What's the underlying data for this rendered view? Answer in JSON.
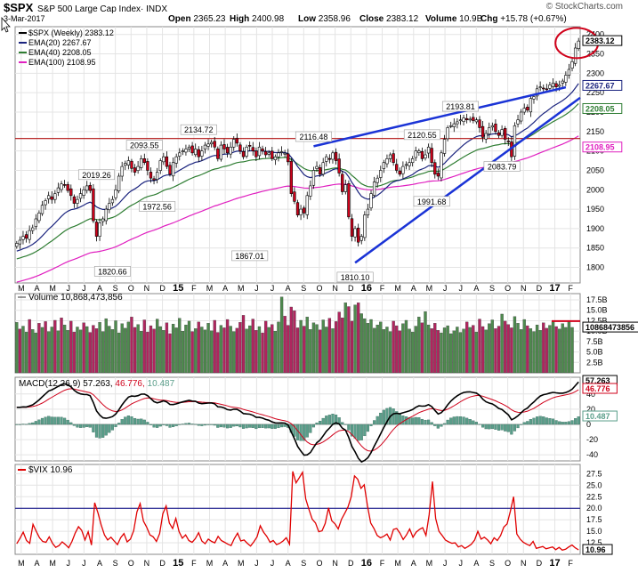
{
  "header": {
    "symbol": "$SPX",
    "name": "S&P 500 Large Cap Index",
    "exchange": "INDX",
    "date": "3-Mar-2017",
    "open_label": "Open",
    "open": "2365.23",
    "high_label": "High",
    "high": "2400.98",
    "low_label": "Low",
    "low": "2358.96",
    "close_label": "Close",
    "close": "2383.12",
    "volume_label": "Volume",
    "volume": "10.9B",
    "chg_label": "Chg",
    "chg": "+15.78 (+0.67%)",
    "watermark": "© StockCharts.com"
  },
  "colors": {
    "up": "#ffffff",
    "down": "#d0021b",
    "ema20": "#1a237e",
    "ema40": "#2e7d32",
    "ema100": "#e020c0",
    "trend": "#1a33d6",
    "hline": "#b01010",
    "vol_up": "#4e8a4e",
    "vol_down": "#b0255e",
    "macd_hist": "#5a9e8a",
    "vix": "#e00000",
    "axis": "#555555",
    "grid": "#e4e4e4"
  },
  "x_axis": {
    "month_labels": [
      "M",
      "A",
      "M",
      "J",
      "J",
      "A",
      "S",
      "O",
      "N",
      "D",
      "15",
      "F",
      "M",
      "A",
      "M",
      "J",
      "J",
      "A",
      "S",
      "O",
      "N",
      "D",
      "16",
      "F",
      "M",
      "A",
      "M",
      "J",
      "J",
      "A",
      "S",
      "O",
      "N",
      "D",
      "17",
      "F"
    ],
    "bold_labels": [
      "15",
      "16",
      "17"
    ]
  },
  "chart_data": [
    {
      "type": "candlestick",
      "title": "$SPX (Weekly) 2383.12",
      "period": "Weekly",
      "legend_placement": "top-left",
      "legend": [
        {
          "label": "$SPX (Weekly) 2383.12",
          "color": "#000000"
        },
        {
          "label": "EMA(20) 2267.67",
          "color": "#1a237e"
        },
        {
          "label": "EMA(40) 2208.05",
          "color": "#2e7d32"
        },
        {
          "label": "EMA(100) 2108.95",
          "color": "#e020c0"
        }
      ],
      "y_ticks": [
        1800,
        1850,
        1900,
        1950,
        2000,
        2050,
        2100,
        2150,
        2200,
        2250,
        2300,
        2350,
        2400
      ],
      "y_tick_labels": [
        "1800",
        "1850",
        "1900",
        "1950",
        "2000",
        "2050",
        "2100",
        "2150",
        "2200",
        "2250",
        "2300",
        "2350",
        "2400"
      ],
      "ylim": [
        1760,
        2420
      ],
      "last_value_tags": [
        {
          "label": "2383.12",
          "value": 2383.12,
          "color": "#000000"
        },
        {
          "label": "2267.67",
          "value": 2267.67,
          "color": "#1a237e"
        },
        {
          "label": "2208.05",
          "value": 2208.05,
          "color": "#2e7d32"
        },
        {
          "label": "2108.95",
          "value": 2108.95,
          "color": "#e020c0"
        }
      ],
      "close": [
        1862,
        1870,
        1880,
        1875,
        1895,
        1902,
        1925,
        1940,
        1960,
        1972,
        1985,
        1975,
        1990,
        2005,
        2015,
        2012,
        1998,
        1985,
        1965,
        1975,
        1990,
        2000,
        2010,
        1998,
        1920,
        1880,
        1915,
        1925,
        1950,
        1965,
        1975,
        2000,
        2035,
        2060,
        2068,
        2075,
        2055,
        2045,
        2060,
        2080,
        2070,
        2050,
        2030,
        2025,
        2045,
        2075,
        2085,
        2060,
        2040,
        2070,
        2085,
        2095,
        2100,
        2105,
        2110,
        2095,
        2105,
        2085,
        2100,
        2115,
        2118,
        2122,
        2110,
        2080,
        2115,
        2105,
        2095,
        2110,
        2130,
        2120,
        2100,
        2085,
        2110,
        2112,
        2100,
        2085,
        2110,
        2100,
        2090,
        2095,
        2080,
        2085,
        2095,
        2098,
        2094,
        2072,
        1990,
        1970,
        1935,
        1950,
        1940,
        1985,
        2010,
        2050,
        2060,
        2040,
        2070,
        2085,
        2080,
        2095,
        2075,
        2043,
        1995,
        2013,
        1930,
        1880,
        1900,
        1865,
        1880,
        1935,
        1950,
        1990,
        2020,
        2030,
        2050,
        2070,
        2080,
        2090,
        2070,
        2050,
        2040,
        2060,
        2065,
        2070,
        2080,
        2100,
        2100,
        2080,
        2090,
        2110,
        2070,
        2040,
        2035,
        2095,
        2130,
        2160,
        2165,
        2170,
        2175,
        2180,
        2185,
        2180,
        2182,
        2178,
        2180,
        2160,
        2135,
        2145,
        2160,
        2165,
        2150,
        2140,
        2155,
        2130,
        2125,
        2085,
        2165,
        2180,
        2200,
        2210,
        2205,
        2235,
        2240,
        2260,
        2265,
        2260,
        2258,
        2270,
        2275,
        2265,
        2270,
        2280,
        2295,
        2310,
        2330,
        2365,
        2383
      ],
      "lows": [
        1820.66,
        1867.01,
        1810.1,
        1991.68,
        2083.79
      ],
      "highs": [
        2019.26,
        2093.55,
        2134.72,
        2116.48,
        2120.55,
        2193.81
      ],
      "extra_labels": [
        {
          "label": "1972.56",
          "value": 1972.56
        }
      ],
      "annotations": [
        "1820.66",
        "2019.26",
        "2093.55",
        "1972.56",
        "2134.72",
        "1867.01",
        "2116.48",
        "1810.10",
        "1991.68",
        "2120.55",
        "2193.81",
        "2083.79"
      ],
      "horizontal_line": 2132,
      "series": [
        {
          "name": "EMA(20)",
          "color": "#1a237e"
        },
        {
          "name": "EMA(40)",
          "color": "#2e7d32"
        },
        {
          "name": "EMA(100)",
          "color": "#e020c0"
        }
      ]
    },
    {
      "type": "bar",
      "title": "Volume 10,868,473,856",
      "y_tick_labels": [
        "2.5B",
        "5.0B",
        "7.5B",
        "10.0B",
        "12.5B",
        "15.0B",
        "17.5B"
      ],
      "y_ticks": [
        2.5,
        5.0,
        7.5,
        10.0,
        12.5,
        15.0,
        17.5
      ],
      "ylim": [
        0,
        19
      ],
      "last_value_tag": {
        "label": "10868473856",
        "value": 10.87
      },
      "reference_line": 12.4,
      "values": [
        12.1,
        10.5,
        11.2,
        9.8,
        12.8,
        10.4,
        9.6,
        11.9,
        10.9,
        12.3,
        9.9,
        11.0,
        12.6,
        10.1,
        13.2,
        11.5,
        10.2,
        12.4,
        9.8,
        11.0,
        10.3,
        12.0,
        11.1,
        9.7,
        11.4,
        10.6,
        12.1,
        9.9,
        13.0,
        11.2,
        10.4,
        12.5,
        9.6,
        11.8,
        10.7,
        12.2,
        13.4,
        10.9,
        11.6,
        10.0,
        12.7,
        9.8,
        11.3,
        10.5,
        12.9,
        11.1,
        10.2,
        12.0,
        9.4,
        11.7,
        10.8,
        13.1,
        10.0,
        11.5,
        12.4,
        9.9,
        10.6,
        12.2,
        11.0,
        10.3,
        11.9,
        10.1,
        12.6,
        9.7,
        11.4,
        10.8,
        12.8,
        11.2,
        9.9,
        10.7,
        12.1,
        13.8,
        10.5,
        11.3,
        12.9,
        10.2,
        11.1,
        9.6,
        12.4,
        10.9,
        11.6,
        10.0,
        12.2,
        18.2,
        13.6,
        11.4,
        15.8,
        14.9,
        10.8,
        12.6,
        11.2,
        13.4,
        10.4,
        12.0,
        11.6,
        10.3,
        12.7,
        11.0,
        13.1,
        10.6,
        12.3,
        14.6,
        13.2,
        16.8,
        15.9,
        12.4,
        16.3,
        16.8,
        14.2,
        13.0,
        11.9,
        12.8,
        10.7,
        11.5,
        12.2,
        10.4,
        11.0,
        9.9,
        12.4,
        11.3,
        10.1,
        11.8,
        12.6,
        10.5,
        9.8,
        11.2,
        13.4,
        12.0,
        14.7,
        11.5,
        10.6,
        11.9,
        10.2,
        9.6,
        10.8,
        11.3,
        9.4,
        10.1,
        11.0,
        9.7,
        10.5,
        12.2,
        10.9,
        11.4,
        9.8,
        12.9,
        11.1,
        10.3,
        11.8,
        12.7,
        10.6,
        11.2,
        14.1,
        12.4,
        11.6,
        10.8,
        13.5,
        11.9,
        10.4,
        12.8,
        11.3,
        10.6,
        9.9,
        11.5,
        10.2,
        12.0,
        10.7,
        11.4,
        12.3,
        11.1,
        10.5,
        11.8,
        10.9,
        12.2,
        10.9
      ],
      "up_flags": [
        1,
        0,
        1,
        1,
        0,
        1,
        1,
        0,
        1,
        0,
        1,
        1,
        0,
        1,
        0,
        1,
        1,
        0,
        0,
        1,
        1,
        0,
        1,
        0,
        0,
        0,
        1,
        1,
        1,
        1,
        1,
        1,
        1,
        1,
        1,
        1,
        0,
        0,
        1,
        1,
        0,
        0,
        0,
        0,
        1,
        1,
        1,
        0,
        0,
        1,
        1,
        1,
        1,
        1,
        1,
        0,
        1,
        0,
        1,
        1,
        1,
        1,
        0,
        0,
        1,
        0,
        0,
        1,
        1,
        0,
        0,
        0,
        1,
        1,
        0,
        0,
        1,
        0,
        0,
        1,
        0,
        1,
        1,
        1,
        0,
        0,
        0,
        0,
        0,
        1,
        0,
        1,
        1,
        1,
        1,
        0,
        1,
        1,
        0,
        1,
        0,
        0,
        0,
        1,
        0,
        0,
        1,
        0,
        1,
        1,
        1,
        1,
        1,
        1,
        1,
        1,
        1,
        1,
        0,
        0,
        0,
        1,
        1,
        1,
        1,
        1,
        1,
        0,
        1,
        1,
        0,
        0,
        0,
        1,
        1,
        1,
        1,
        1,
        1,
        1,
        1,
        0,
        1,
        0,
        1,
        0,
        0,
        1,
        1,
        1,
        0,
        0,
        1,
        0,
        0,
        0,
        1,
        1,
        1,
        1,
        0,
        1,
        1,
        1,
        1,
        0,
        0,
        1,
        1,
        0,
        1,
        1,
        1,
        1,
        1,
        1,
        1
      ]
    },
    {
      "type": "line",
      "title": "MACD(12,26,9) 57.263, 46.776, 10.487",
      "legend": [
        {
          "label": "MACD(12,26,9) 57.263,",
          "color": "#000000"
        },
        {
          "label": "46.776,",
          "color": "#d0021b"
        },
        {
          "label": "10.487",
          "color": "#5a9e8a"
        }
      ],
      "y_ticks": [
        -40,
        -20,
        0,
        20,
        40
      ],
      "y_tick_labels": [
        "-40",
        "-20",
        "0",
        "20",
        "40"
      ],
      "ylim": [
        -48,
        62
      ],
      "last_value_tags": [
        {
          "label": "57.263",
          "value": 57.263,
          "color": "#000000"
        },
        {
          "label": "46.776",
          "value": 46.776,
          "color": "#d0021b"
        },
        {
          "label": "10.487",
          "value": 10.487,
          "color": "#5a9e8a"
        }
      ]
    },
    {
      "type": "line",
      "title": "$VIX 10.96",
      "y_ticks": [
        12.5,
        15.0,
        17.5,
        20.0,
        22.5,
        25.0,
        27.5
      ],
      "y_tick_labels": [
        "12.5",
        "15.0",
        "17.5",
        "20.0",
        "22.5",
        "25.0",
        "27.5"
      ],
      "ylim": [
        10,
        29.5
      ],
      "reference_line": 20.0,
      "last_value_tag": {
        "label": "10.96",
        "value": 10.96
      },
      "values": [
        12.3,
        13.5,
        14.8,
        13.0,
        12.4,
        16.5,
        15.0,
        13.6,
        12.8,
        12.6,
        13.8,
        12.4,
        11.5,
        11.9,
        12.7,
        12.1,
        11.4,
        12.8,
        14.6,
        16.0,
        15.2,
        13.1,
        14.9,
        12.0,
        21.2,
        19.0,
        16.4,
        14.2,
        13.1,
        13.7,
        12.9,
        12.1,
        13.6,
        14.5,
        12.7,
        13.3,
        15.1,
        19.2,
        21.0,
        17.2,
        15.9,
        14.2,
        13.8,
        12.8,
        14.5,
        18.8,
        20.5,
        16.8,
        15.6,
        17.8,
        14.9,
        13.5,
        14.2,
        13.0,
        12.6,
        13.4,
        14.7,
        12.9,
        12.3,
        13.3,
        12.8,
        12.5,
        13.9,
        13.0,
        12.6,
        12.2,
        11.9,
        13.4,
        14.6,
        12.9,
        13.1,
        12.4,
        11.8,
        12.7,
        13.8,
        16.2,
        14.8,
        13.9,
        12.6,
        13.0,
        12.1,
        12.4,
        12.9,
        13.6,
        12.2,
        28.0,
        25.5,
        26.6,
        27.8,
        22.0,
        19.7,
        17.6,
        16.8,
        14.9,
        15.1,
        16.7,
        20.1,
        17.3,
        16.6,
        15.5,
        17.6,
        18.9,
        20.3,
        22.5,
        27.0,
        26.3,
        24.3,
        25.1,
        20.5,
        16.8,
        15.6,
        14.1,
        13.6,
        13.9,
        14.4,
        13.1,
        15.4,
        15.6,
        14.6,
        13.2,
        14.2,
        15.5,
        13.7,
        14.8,
        15.4,
        15.8,
        14.1,
        18.6,
        25.8,
        17.8,
        15.0,
        14.1,
        13.1,
        12.7,
        12.4,
        12.5,
        11.6,
        11.9,
        11.3,
        11.7,
        12.2,
        13.1,
        15.0,
        13.3,
        13.7,
        13.1,
        12.3,
        13.6,
        13.0,
        14.1,
        15.9,
        16.6,
        19.3,
        22.5,
        14.4,
        13.3,
        12.6,
        12.2,
        11.9,
        12.8,
        11.3,
        11.5,
        11.7,
        11.2,
        11.4,
        11.6,
        11.0,
        11.5,
        10.9,
        11.1,
        11.6,
        12.0,
        11.4,
        10.96
      ]
    }
  ]
}
